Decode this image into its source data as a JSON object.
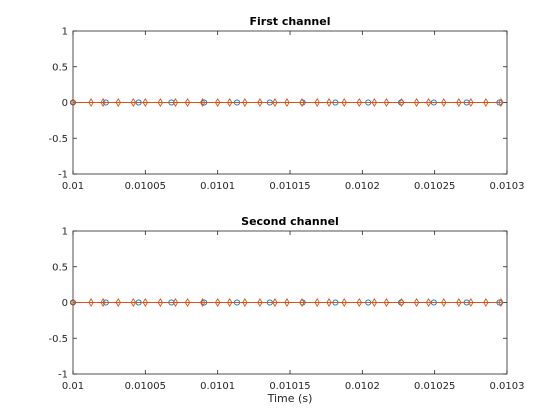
{
  "chart_data": [
    {
      "type": "line",
      "title": "First channel",
      "xlabel": "",
      "ylabel": "",
      "xlim": [
        0.01,
        0.0103
      ],
      "ylim": [
        -1,
        1
      ],
      "xticks": [
        0.01,
        0.01005,
        0.0101,
        0.01015,
        0.0102,
        0.01025,
        0.0103
      ],
      "xtick_labels": [
        "0.01",
        "0.01005",
        "0.0101",
        "0.01015",
        "0.0102",
        "0.01025",
        "0.0103"
      ],
      "yticks": [
        -1,
        -0.5,
        0,
        0.5,
        1
      ],
      "ytick_labels": [
        "-1",
        "-0.5",
        "0",
        "0.5",
        "1"
      ],
      "series": [
        {
          "marker": "circle",
          "color": "#0072BD",
          "x": [
            0.01,
            0.010022676,
            0.010045351,
            0.010068027,
            0.010090703,
            0.010113379,
            0.010136054,
            0.01015873,
            0.010181406,
            0.010204082,
            0.010226757,
            0.010249433,
            0.010272109,
            0.010294785
          ],
          "y": [
            0,
            0,
            0,
            0,
            0,
            0,
            0,
            0,
            0,
            0,
            0,
            0,
            0,
            0
          ]
        },
        {
          "marker": "diamond",
          "color": "#D95319",
          "x": [
            0.01,
            0.0100125,
            0.0100208,
            0.0100313,
            0.0100417,
            0.01005,
            0.0100604,
            0.0100708,
            0.0100792,
            0.0100896,
            0.0101,
            0.0101083,
            0.0101188,
            0.0101292,
            0.0101396,
            0.0101479,
            0.0101583,
            0.0101688,
            0.010177,
            0.0101875,
            0.0101979,
            0.0102083,
            0.0102167,
            0.0102271,
            0.0102375,
            0.0102458,
            0.0102563,
            0.0102667,
            0.010275,
            0.0102854,
            0.0102958
          ],
          "y": [
            0,
            0,
            0,
            0,
            0,
            0,
            0,
            0,
            0,
            0,
            0,
            0,
            0,
            0,
            0,
            0,
            0,
            0,
            0,
            0,
            0,
            0,
            0,
            0,
            0,
            0,
            0,
            0,
            0,
            0,
            0
          ]
        }
      ]
    },
    {
      "type": "line",
      "title": "Second channel",
      "xlabel": "Time (s)",
      "ylabel": "",
      "xlim": [
        0.01,
        0.0103
      ],
      "ylim": [
        -1,
        1
      ],
      "xticks": [
        0.01,
        0.01005,
        0.0101,
        0.01015,
        0.0102,
        0.01025,
        0.0103
      ],
      "xtick_labels": [
        "0.01",
        "0.01005",
        "0.0101",
        "0.01015",
        "0.0102",
        "0.01025",
        "0.0103"
      ],
      "yticks": [
        -1,
        -0.5,
        0,
        0.5,
        1
      ],
      "ytick_labels": [
        "-1",
        "-0.5",
        "0",
        "0.5",
        "1"
      ],
      "series": [
        {
          "marker": "circle",
          "color": "#0072BD",
          "x": [
            0.01,
            0.010022676,
            0.010045351,
            0.010068027,
            0.010090703,
            0.010113379,
            0.010136054,
            0.01015873,
            0.010181406,
            0.010204082,
            0.010226757,
            0.010249433,
            0.010272109,
            0.010294785
          ],
          "y": [
            0,
            0,
            0,
            0,
            0,
            0,
            0,
            0,
            0,
            0,
            0,
            0,
            0,
            0
          ]
        },
        {
          "marker": "diamond",
          "color": "#D95319",
          "x": [
            0.01,
            0.0100125,
            0.0100208,
            0.0100313,
            0.0100417,
            0.01005,
            0.0100604,
            0.0100708,
            0.0100792,
            0.0100896,
            0.0101,
            0.0101083,
            0.0101188,
            0.0101292,
            0.0101396,
            0.0101479,
            0.0101583,
            0.0101688,
            0.010177,
            0.0101875,
            0.0101979,
            0.0102083,
            0.0102167,
            0.0102271,
            0.0102375,
            0.0102458,
            0.0102563,
            0.0102667,
            0.010275,
            0.0102854,
            0.0102958
          ],
          "y": [
            0,
            0,
            0,
            0,
            0,
            0,
            0,
            0,
            0,
            0,
            0,
            0,
            0,
            0,
            0,
            0,
            0,
            0,
            0,
            0,
            0,
            0,
            0,
            0,
            0,
            0,
            0,
            0,
            0,
            0,
            0
          ]
        }
      ]
    }
  ]
}
